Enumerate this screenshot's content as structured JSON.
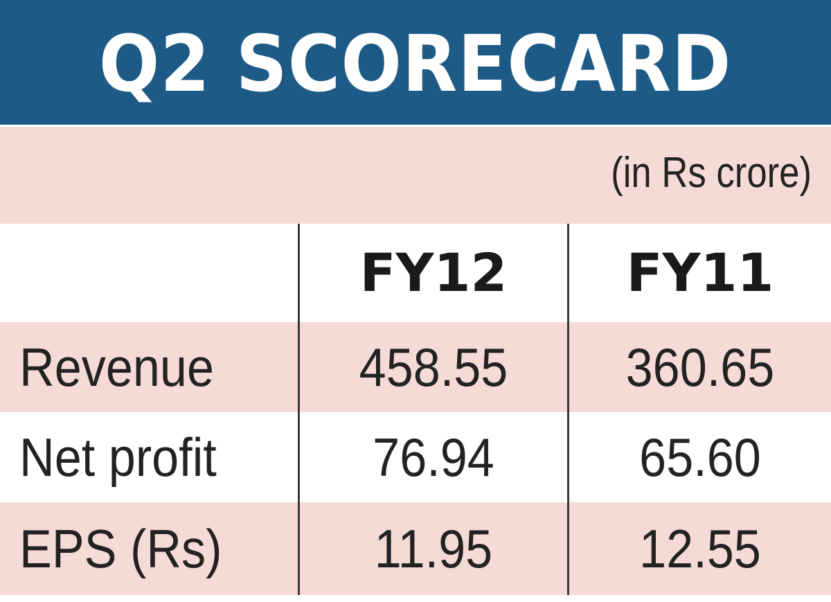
{
  "colors": {
    "banner": "#1e5a86",
    "banner_text": "#ffffff",
    "shade": "#f6dad6",
    "text": "#222222",
    "rule": "#3a3a3a"
  },
  "chart_data": {
    "type": "table",
    "title": "Q2 SCORECARD",
    "unit_note": "(in Rs crore)",
    "columns": [
      "FY12",
      "FY11"
    ],
    "rows": [
      {
        "label": "Revenue",
        "values": [
          "458.55",
          "360.65"
        ]
      },
      {
        "label": "Net profit",
        "values": [
          "76.94",
          "65.60"
        ]
      },
      {
        "label": "EPS (Rs)",
        "values": [
          "11.95",
          "12.55"
        ]
      }
    ]
  }
}
